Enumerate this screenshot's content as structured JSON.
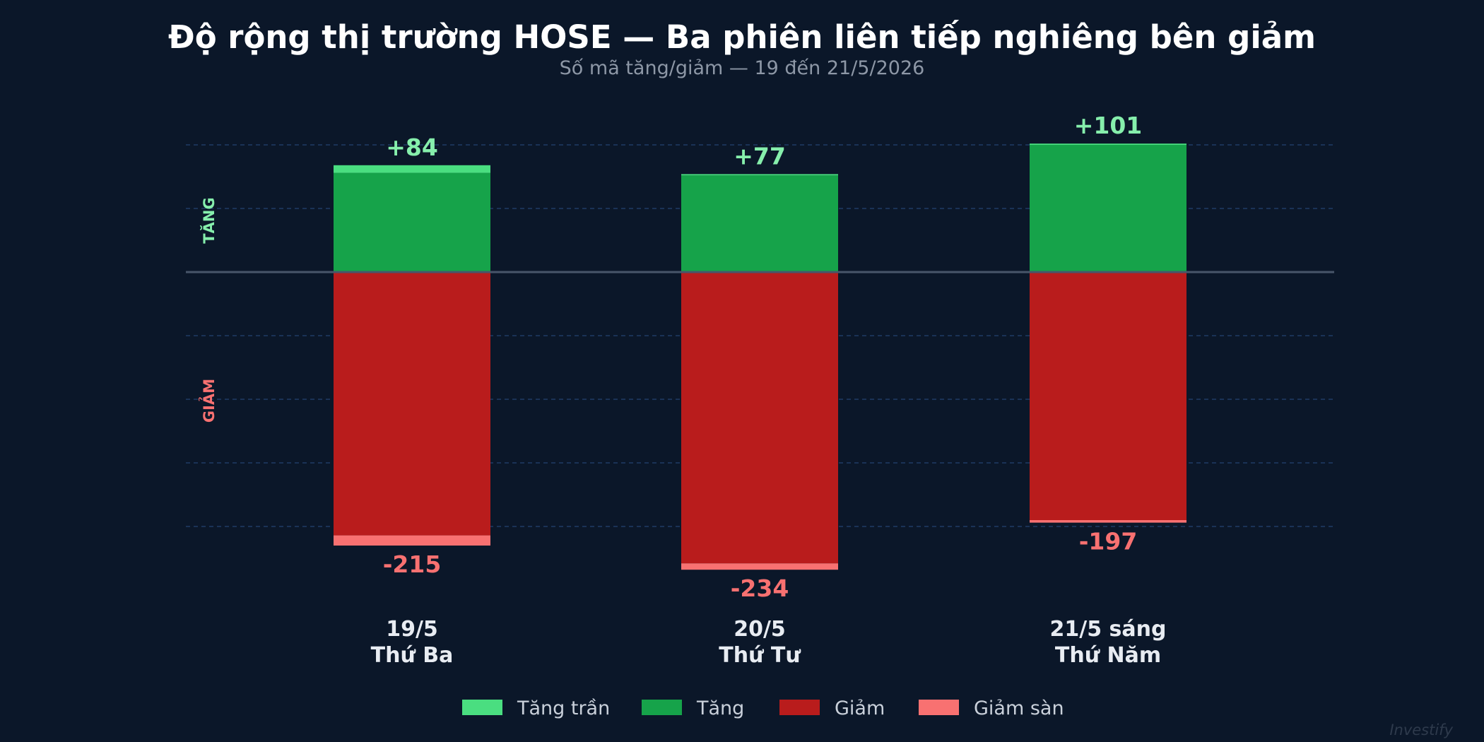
{
  "chart_data": {
    "type": "bar",
    "title": "Độ rộng thị trường HOSE — Ba phiên liên tiếp nghiêng bên giảm",
    "subtitle": "Số mã tăng/giảm — 19 đến 21/5/2026",
    "zone_labels": {
      "up": "TĂNG",
      "down": "GIẢM"
    },
    "categories": [
      {
        "date": "19/5",
        "weekday": "Thứ Ba"
      },
      {
        "date": "20/5",
        "weekday": "Thứ Tư"
      },
      {
        "date": "21/5 sáng",
        "weekday": "Thứ Năm"
      }
    ],
    "series": [
      {
        "name": "Tăng trần",
        "color": "#4ade80",
        "values": [
          6,
          1,
          1
        ]
      },
      {
        "name": "Tăng",
        "color": "#16a34a",
        "values": [
          78,
          76,
          100
        ]
      },
      {
        "name": "Giảm",
        "color": "#b91c1c",
        "values": [
          -207,
          -229,
          -195
        ]
      },
      {
        "name": "Giảm sàn",
        "color": "#f87171",
        "values": [
          -8,
          -5,
          -2
        ]
      }
    ],
    "totals": {
      "up": [
        "+84",
        "+77",
        "+101"
      ],
      "down": [
        "-215",
        "-234",
        "-197"
      ]
    },
    "up_color": "#86efac",
    "down_color": "#f87171",
    "ylim": [
      -240,
      110
    ],
    "gridlines": [
      100,
      50,
      -50,
      -100,
      -150,
      -200
    ],
    "legend_position": "bottom",
    "grid": true
  },
  "watermark": "Investify"
}
